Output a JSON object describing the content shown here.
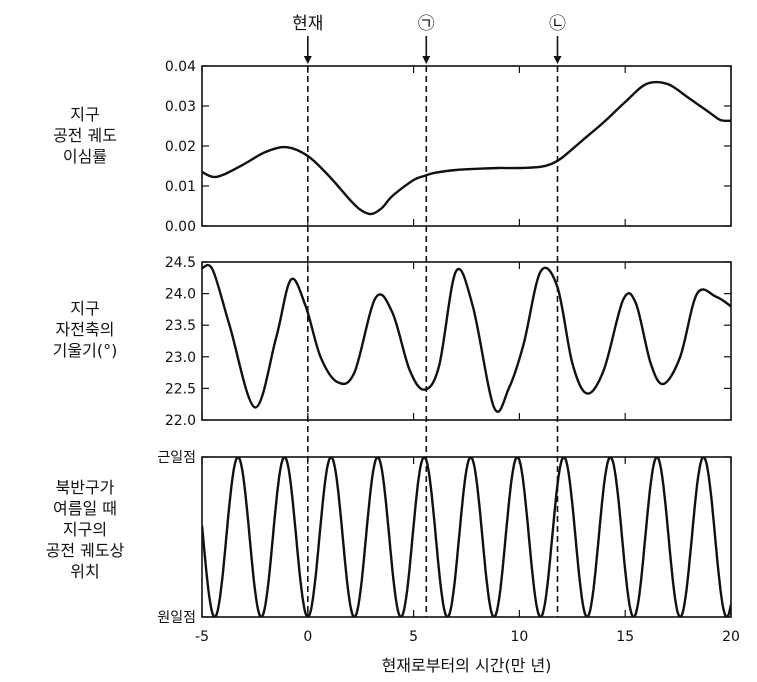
{
  "chart_data": [
    {
      "type": "line",
      "panel": "eccentricity",
      "ylabel": "지구\n공전 궤도\n이심률",
      "ylim": [
        0.0,
        0.04
      ],
      "yticks": [
        "0.04",
        "0.03",
        "0.02",
        "0.01",
        "0.00"
      ],
      "ytick_values": [
        0.04,
        0.03,
        0.02,
        0.01,
        0.0
      ],
      "xlim": [
        -5,
        20
      ],
      "x": [
        -5,
        -4.5,
        -4,
        -3,
        -2,
        -1,
        0,
        1,
        2,
        2.5,
        3,
        3.5,
        4,
        5,
        5.5,
        6,
        7,
        8,
        9,
        10,
        11,
        11.5,
        12,
        13,
        14,
        15,
        16,
        17,
        18,
        19,
        19.5,
        20
      ],
      "y": [
        0.0135,
        0.0123,
        0.0128,
        0.0155,
        0.0185,
        0.0197,
        0.0175,
        0.0125,
        0.0065,
        0.004,
        0.003,
        0.0045,
        0.0075,
        0.0115,
        0.0125,
        0.0133,
        0.014,
        0.0143,
        0.0145,
        0.0145,
        0.0148,
        0.0155,
        0.017,
        0.0215,
        0.026,
        0.031,
        0.0355,
        0.0355,
        0.032,
        0.0283,
        0.0265,
        0.0263
      ]
    },
    {
      "type": "line",
      "panel": "obliquity",
      "ylabel": "지구\n자전축의\n기울기(°)",
      "ylim": [
        22.0,
        24.5
      ],
      "yticks": [
        "24.5",
        "24.0",
        "23.5",
        "23.0",
        "22.5",
        "22.0"
      ],
      "ytick_values": [
        24.5,
        24.0,
        23.5,
        23.0,
        22.5,
        22.0
      ],
      "xlim": [
        -5,
        20
      ],
      "x": [
        -5,
        -4.5,
        -3.7,
        -2.5,
        -1.5,
        -0.8,
        -0.1,
        0.6,
        1.4,
        2.2,
        3.2,
        4.0,
        4.8,
        5.5,
        6.2,
        7.0,
        7.8,
        8.8,
        9.5,
        10.2,
        11.0,
        11.8,
        12.5,
        13.2,
        14.0,
        14.9,
        15.5,
        16.2,
        16.8,
        17.6,
        18.4,
        19.3,
        20
      ],
      "y": [
        24.4,
        24.38,
        23.5,
        22.2,
        23.3,
        24.22,
        23.8,
        23.0,
        22.6,
        22.75,
        23.93,
        23.7,
        22.8,
        22.48,
        22.85,
        24.35,
        23.8,
        22.2,
        22.5,
        23.2,
        24.35,
        24.1,
        22.9,
        22.42,
        22.8,
        23.9,
        23.85,
        22.9,
        22.57,
        23.0,
        24.0,
        23.95,
        23.8
      ]
    },
    {
      "type": "line",
      "panel": "precession",
      "ylabel": "북반구가\n여름일 때\n지구의\n공전 궤도상\n위치",
      "yticks": [
        "근일점",
        "원일점"
      ],
      "ytick_values": [
        1,
        0
      ],
      "ylim": [
        0,
        1
      ],
      "xlim": [
        -5,
        20
      ],
      "period": 2.2,
      "zero_at": 0
    }
  ],
  "xticks": [
    "-5",
    "0",
    "5",
    "10",
    "15",
    "20"
  ],
  "xtick_values": [
    -5,
    0,
    5,
    10,
    15,
    20
  ],
  "xlabel": "현재로부터의 시간(만 년)",
  "markers": [
    {
      "label": "현재",
      "x": 0
    },
    {
      "label": "㉠",
      "x": 5.6
    },
    {
      "label": "㉡",
      "x": 11.8
    }
  ]
}
